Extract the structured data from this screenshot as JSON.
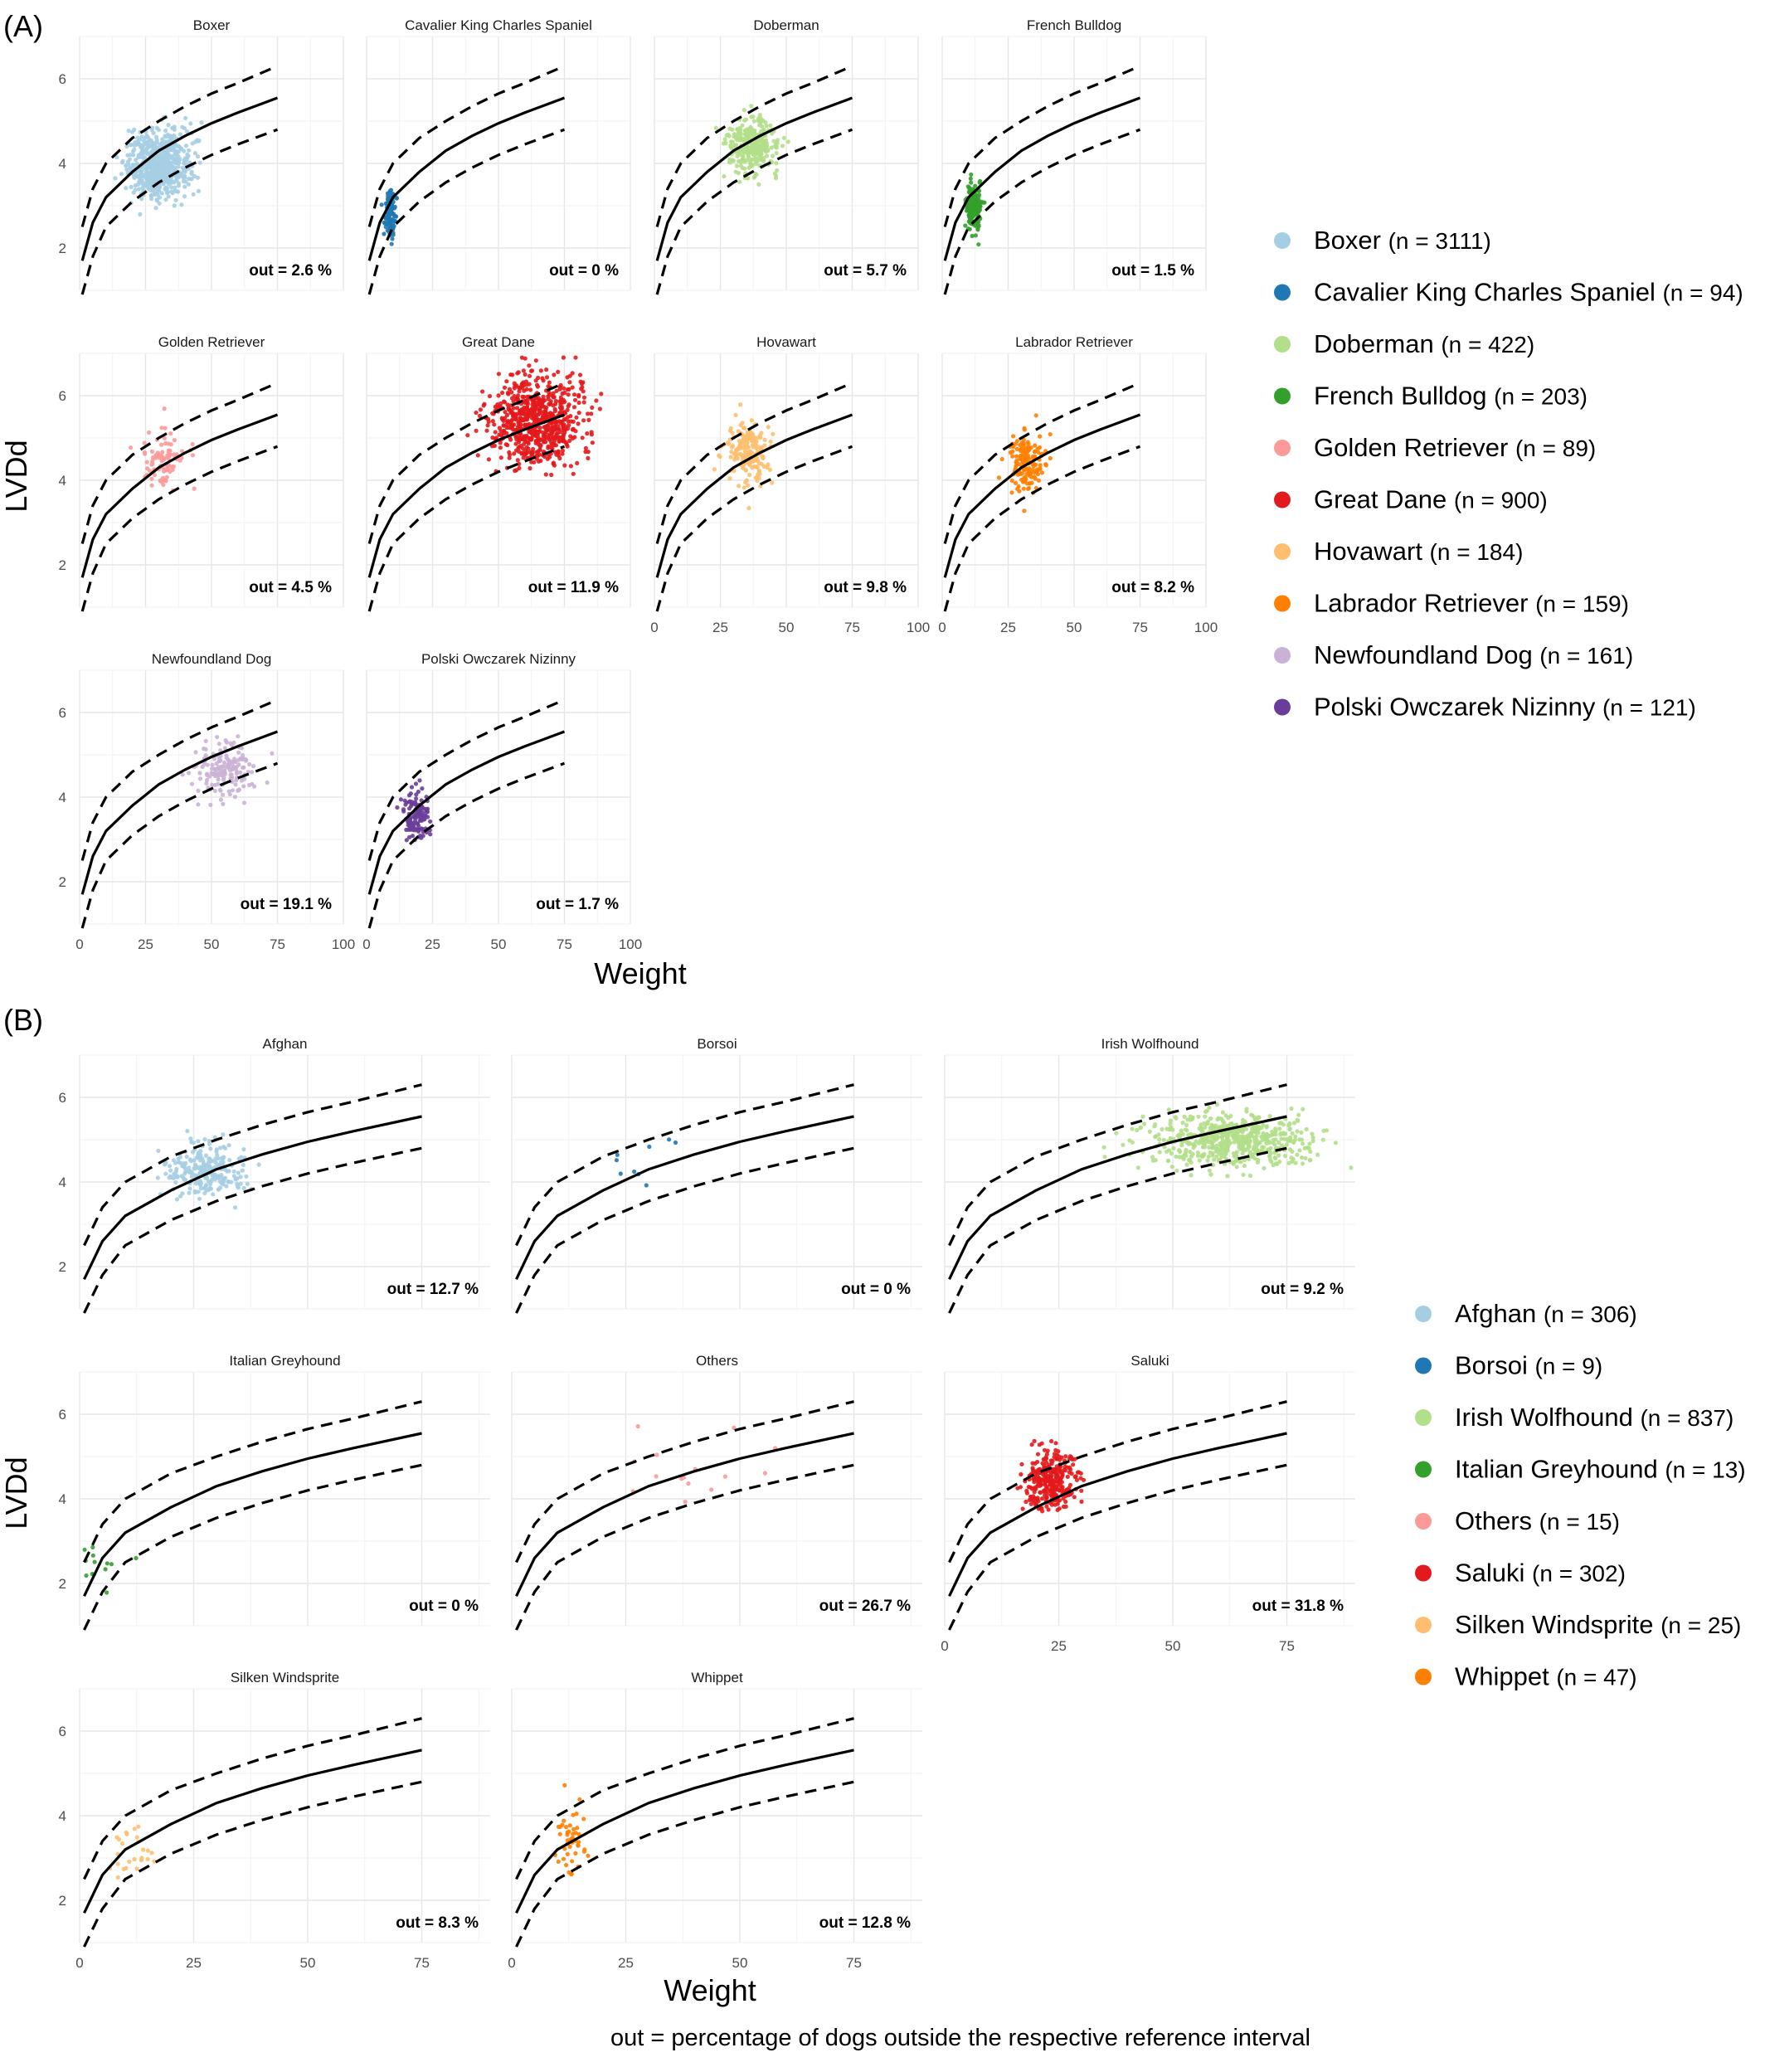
{
  "figure": {
    "caption": "out = percentage of dogs outside the respective reference interval",
    "colors": [
      "#a6cee3",
      "#1f78b4",
      "#b2df8a",
      "#33a02c",
      "#fb9a99",
      "#e31a1c",
      "#fdbf6f",
      "#ff7f00",
      "#cab2d6",
      "#6a3d9a"
    ]
  },
  "chart_data": [
    {
      "type": "scatter",
      "panel_label": "(A)",
      "xlabel": "Weight",
      "ylabel": "LVDd",
      "xlim": [
        0,
        100
      ],
      "ylim": [
        1,
        7
      ],
      "x_ticks": [
        0,
        25,
        50,
        75,
        100
      ],
      "y_ticks": [
        2,
        4,
        6
      ],
      "grid": true,
      "legend_position": "right",
      "reference_curve": {
        "fit": [
          [
            1,
            1.7
          ],
          [
            5,
            2.6
          ],
          [
            10,
            3.2
          ],
          [
            20,
            3.8
          ],
          [
            30,
            4.3
          ],
          [
            40,
            4.65
          ],
          [
            50,
            4.95
          ],
          [
            60,
            5.2
          ],
          [
            75,
            5.55
          ]
        ],
        "upper": [
          [
            1,
            2.5
          ],
          [
            5,
            3.4
          ],
          [
            10,
            4.0
          ],
          [
            20,
            4.6
          ],
          [
            30,
            5.0
          ],
          [
            40,
            5.35
          ],
          [
            50,
            5.65
          ],
          [
            60,
            5.9
          ],
          [
            75,
            6.3
          ]
        ],
        "lower": [
          [
            1,
            0.9
          ],
          [
            5,
            1.8
          ],
          [
            10,
            2.5
          ],
          [
            20,
            3.1
          ],
          [
            30,
            3.55
          ],
          [
            40,
            3.9
          ],
          [
            50,
            4.2
          ],
          [
            60,
            4.45
          ],
          [
            75,
            4.8
          ]
        ]
      },
      "series": [
        {
          "name": "Boxer",
          "n": "(n = 3111)",
          "out": "out = 2.6 %",
          "color": "#a6cee3",
          "cx": 30,
          "cy": 4.0,
          "sx": 6,
          "sy": 0.4,
          "count": 650
        },
        {
          "name": "Cavalier King Charles Spaniel",
          "n": "(n = 94)",
          "out": "out = 0 %",
          "color": "#1f78b4",
          "cx": 9,
          "cy": 2.8,
          "sx": 1.2,
          "sy": 0.3,
          "count": 94
        },
        {
          "name": "Doberman",
          "n": "(n = 422)",
          "out": "out = 5.7 %",
          "color": "#b2df8a",
          "cx": 37,
          "cy": 4.4,
          "sx": 5,
          "sy": 0.35,
          "count": 300
        },
        {
          "name": "French Bulldog",
          "n": "(n = 203)",
          "out": "out = 1.5 %",
          "color": "#33a02c",
          "cx": 12,
          "cy": 3.0,
          "sx": 1.5,
          "sy": 0.3,
          "count": 180
        },
        {
          "name": "Golden Retriever",
          "n": "(n = 89)",
          "out": "out = 4.5 %",
          "color": "#fb9a99",
          "cx": 32,
          "cy": 4.45,
          "sx": 4,
          "sy": 0.35,
          "count": 89
        },
        {
          "name": "Great Dane",
          "n": "(n = 900)",
          "out": "out = 11.9 %",
          "color": "#e31a1c",
          "cx": 64,
          "cy": 5.4,
          "sx": 9,
          "sy": 0.5,
          "count": 700
        },
        {
          "name": "Hovawart",
          "n": "(n = 184)",
          "out": "out = 9.8 %",
          "color": "#fdbf6f",
          "cx": 35,
          "cy": 4.6,
          "sx": 4,
          "sy": 0.35,
          "count": 184
        },
        {
          "name": "Labrador Retriever",
          "n": "(n = 159)",
          "out": "out = 8.2 %",
          "color": "#ff7f00",
          "cx": 32,
          "cy": 4.4,
          "sx": 3.5,
          "sy": 0.35,
          "count": 159
        },
        {
          "name": "Newfoundland Dog",
          "n": "(n = 161)",
          "out": "out = 19.1 %",
          "color": "#cab2d6",
          "cx": 55,
          "cy": 4.6,
          "sx": 6,
          "sy": 0.35,
          "count": 161
        },
        {
          "name": "Polski Owczarek Nizinny",
          "n": "(n = 121)",
          "out": "out = 1.7 %",
          "color": "#6a3d9a",
          "cx": 19,
          "cy": 3.6,
          "sx": 2.5,
          "sy": 0.3,
          "count": 121
        }
      ]
    },
    {
      "type": "scatter",
      "panel_label": "(B)",
      "xlabel": "Weight",
      "ylabel": "LVDd",
      "xlim": [
        0,
        90
      ],
      "ylim": [
        1,
        7
      ],
      "x_ticks": [
        0,
        25,
        50,
        75
      ],
      "y_ticks": [
        2,
        4,
        6
      ],
      "grid": true,
      "legend_position": "right",
      "reference_curve": {
        "fit": [
          [
            1,
            1.7
          ],
          [
            5,
            2.6
          ],
          [
            10,
            3.2
          ],
          [
            20,
            3.8
          ],
          [
            30,
            4.3
          ],
          [
            40,
            4.65
          ],
          [
            50,
            4.95
          ],
          [
            60,
            5.2
          ],
          [
            75,
            5.55
          ]
        ],
        "upper": [
          [
            1,
            2.5
          ],
          [
            5,
            3.4
          ],
          [
            10,
            4.0
          ],
          [
            20,
            4.6
          ],
          [
            30,
            5.0
          ],
          [
            40,
            5.35
          ],
          [
            50,
            5.65
          ],
          [
            60,
            5.9
          ],
          [
            75,
            6.3
          ]
        ],
        "lower": [
          [
            1,
            0.9
          ],
          [
            5,
            1.8
          ],
          [
            10,
            2.5
          ],
          [
            20,
            3.1
          ],
          [
            30,
            3.55
          ],
          [
            40,
            3.9
          ],
          [
            50,
            4.2
          ],
          [
            60,
            4.45
          ],
          [
            75,
            4.8
          ]
        ]
      },
      "series": [
        {
          "name": "Afghan",
          "n": "(n = 306)",
          "out": "out = 12.7 %",
          "color": "#a6cee3",
          "cx": 27,
          "cy": 4.3,
          "sx": 4,
          "sy": 0.3,
          "count": 250
        },
        {
          "name": "Borsoi",
          "n": "(n = 9)",
          "out": "out = 0 %",
          "color": "#1f78b4",
          "cx": 30,
          "cy": 4.4,
          "sx": 6,
          "sy": 0.4,
          "count": 9
        },
        {
          "name": "Irish Wolfhound",
          "n": "(n = 837)",
          "out": "out = 9.2 %",
          "color": "#b2df8a",
          "cx": 63,
          "cy": 5.0,
          "sx": 9,
          "sy": 0.3,
          "count": 600
        },
        {
          "name": "Italian Greyhound",
          "n": "(n = 13)",
          "out": "out = 0 %",
          "color": "#33a02c",
          "cx": 5,
          "cy": 2.5,
          "sx": 2.5,
          "sy": 0.4,
          "count": 13
        },
        {
          "name": "Others",
          "n": "(n = 15)",
          "out": "out = 26.7 %",
          "color": "#fb9a99",
          "cx": 35,
          "cy": 4.8,
          "sx": 10,
          "sy": 0.6,
          "count": 15
        },
        {
          "name": "Saluki",
          "n": "(n = 302)",
          "out": "out = 31.8 %",
          "color": "#e31a1c",
          "cx": 23,
          "cy": 4.4,
          "sx": 3,
          "sy": 0.35,
          "count": 302
        },
        {
          "name": "Silken Windsprite",
          "n": "(n = 25)",
          "out": "out = 8.3 %",
          "color": "#fdbf6f",
          "cx": 12,
          "cy": 3.2,
          "sx": 2.5,
          "sy": 0.4,
          "count": 25
        },
        {
          "name": "Whippet",
          "n": "(n = 47)",
          "out": "out = 12.8 %",
          "color": "#ff7f00",
          "cx": 13,
          "cy": 3.5,
          "sx": 1.5,
          "sy": 0.4,
          "count": 47
        }
      ]
    }
  ]
}
